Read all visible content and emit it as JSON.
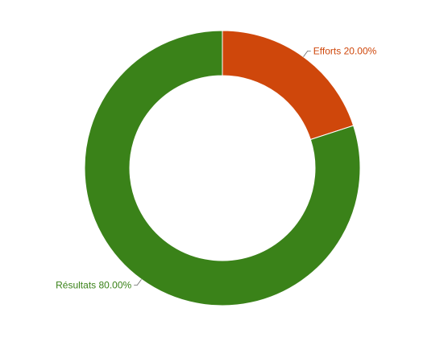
{
  "chart_data": {
    "type": "pie",
    "subtype": "donut",
    "title": "",
    "series": [
      {
        "name": "",
        "values": [
          {
            "label": "Efforts",
            "value": 20.0,
            "display": "20.00%",
            "color": "#cf470b"
          },
          {
            "label": "Résultats",
            "value": 80.0,
            "display": "80.00%",
            "color": "#3a8219"
          }
        ]
      }
    ],
    "legend": "none",
    "labels": "outside-with-leader-lines",
    "start_angle": "top, clockwise"
  }
}
